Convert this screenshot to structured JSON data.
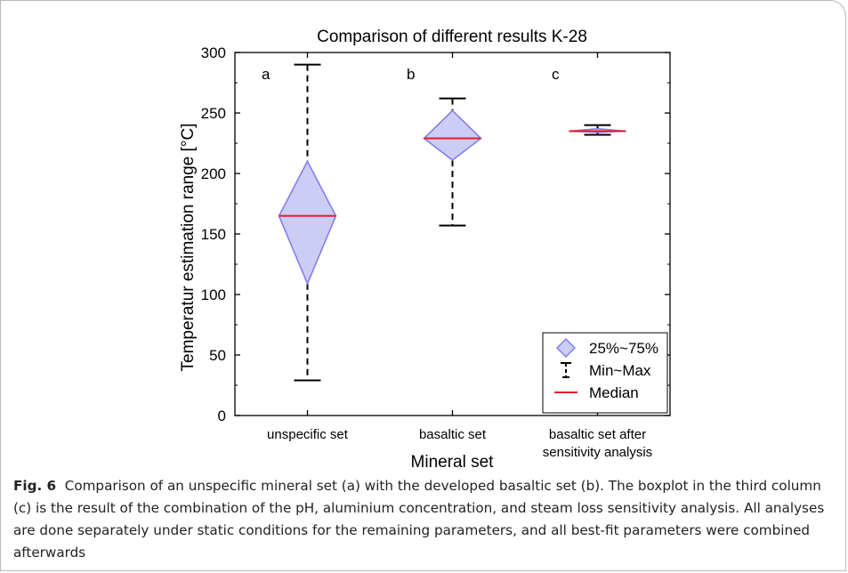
{
  "caption": {
    "label": "Fig. 6",
    "text": "Comparison of an unspecific mineral set (a) with the developed basaltic set (b). The boxplot in the third column (c) is the result of the combination of the pH, aluminium concentration, and steam loss sensitivity analysis. All analyses are done separately under static conditions for the remaining parameters, and all best-fit parameters were combined afterwards"
  },
  "chart_data": {
    "type": "box",
    "title": "Comparison of different results K-28",
    "xlabel": "Mineral set",
    "ylabel": "Temperatur estimation range [°C]",
    "ylim": [
      0,
      300
    ],
    "yticks": [
      0,
      50,
      100,
      150,
      200,
      250,
      300
    ],
    "categories": [
      {
        "label": [
          "unspecific set"
        ],
        "letter": "a",
        "min": 29,
        "q1": 109,
        "median": 165,
        "q3": 210,
        "max": 290
      },
      {
        "label": [
          "basaltic set"
        ],
        "letter": "b",
        "min": 157,
        "q1": 211,
        "median": 229,
        "q3": 252,
        "max": 262
      },
      {
        "label": [
          "basaltic set after",
          "sensitivity analysis"
        ],
        "letter": "c",
        "min": 232,
        "q1": 234,
        "median": 235,
        "q3": 237,
        "max": 240
      }
    ],
    "legend": {
      "position": "bottom-right",
      "items": [
        {
          "key": "box",
          "label": "25%~75%"
        },
        {
          "key": "whisker",
          "label": "Min~Max"
        },
        {
          "key": "median",
          "label": "Median"
        }
      ]
    },
    "colors": {
      "box_fill": "#ccccf5",
      "box_edge": "#8080ee",
      "median": "#e8192c",
      "whisker": "#000000"
    }
  }
}
